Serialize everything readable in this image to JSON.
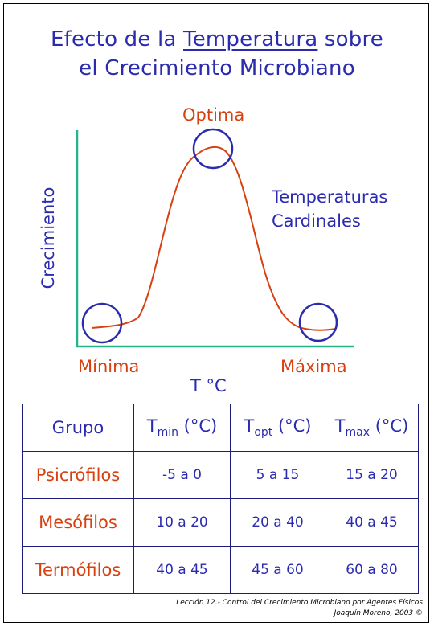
{
  "title": {
    "before": "Efecto de la ",
    "underlined": "Temperatura",
    "after": " sobre",
    "line2": "el Crecimiento Microbiano"
  },
  "diagram": {
    "ylabel": "Crecimiento",
    "xlabel": "T °C",
    "optima": "Optima",
    "minima": "Mínima",
    "maxima": "Máxima",
    "cardinal_line1": "Temperaturas",
    "cardinal_line2": "Cardinales",
    "colors": {
      "axis": "#22b58a",
      "curve": "#d84010",
      "circle": "#2b2bb0"
    }
  },
  "table": {
    "headers": {
      "grupo": "Grupo",
      "tmin": {
        "T": "T",
        "sub": "min",
        "unit": " (°C)"
      },
      "topt": {
        "T": "T",
        "sub": "opt",
        "unit": " (°C)"
      },
      "tmax": {
        "T": "T",
        "sub": "max",
        "unit": " (°C)"
      }
    },
    "rows": [
      {
        "grupo": "Psicrófilos",
        "tmin": "-5 a 0",
        "topt": "5 a 15",
        "tmax": "15 a 20"
      },
      {
        "grupo": "Mesófilos",
        "tmin": "10 a 20",
        "topt": "20 a 40",
        "tmax": "40 a 45"
      },
      {
        "grupo": "Termófilos",
        "tmin": "40 a 45",
        "topt": "45 a 60",
        "tmax": "60 a 80"
      }
    ]
  },
  "footer": {
    "line1": "Lección 12.- Control del Crecimiento Microbiano por Agentes Físicos",
    "line2": "Joaquín Moreno, 2003 ©"
  }
}
